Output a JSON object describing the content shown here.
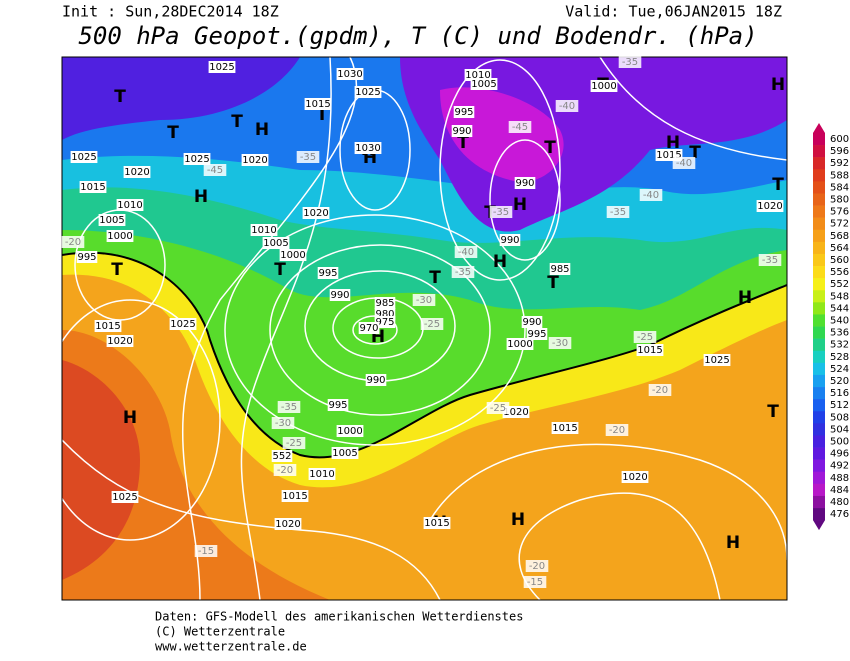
{
  "header": {
    "init": "Init : Sun,28DEC2014 18Z",
    "valid": "Valid: Tue,06JAN2015 18Z",
    "title": "500 hPa Geopot.(gpdm), T (C) und Bodendr. (hPa)"
  },
  "footer": {
    "source": "Daten: GFS-Modell des amerikanischen Wetterdienstes",
    "copyright": "(C) Wetterzentrale",
    "url": "www.wetterzentrale.de"
  },
  "colorbar": {
    "levels": [
      "600",
      "596",
      "592",
      "588",
      "584",
      "580",
      "576",
      "572",
      "568",
      "564",
      "560",
      "556",
      "552",
      "548",
      "544",
      "540",
      "536",
      "532",
      "528",
      "524",
      "520",
      "516",
      "512",
      "508",
      "504",
      "500",
      "496",
      "492",
      "488",
      "484",
      "480",
      "476"
    ],
    "colors": [
      "#c8005a",
      "#d01040",
      "#d82828",
      "#e03c1c",
      "#e45018",
      "#e86418",
      "#ee7818",
      "#f28c18",
      "#f6a018",
      "#f8b418",
      "#fac818",
      "#fcdc18",
      "#f6f018",
      "#c8f018",
      "#90e818",
      "#50e030",
      "#30d850",
      "#20d088",
      "#18d0c0",
      "#18c0e8",
      "#18a0f0",
      "#1880f0",
      "#1860f0",
      "#2040e8",
      "#3030e0",
      "#4820e0",
      "#6018e0",
      "#8018e0",
      "#a018d8",
      "#b818c8",
      "#8c10a0",
      "#600880"
    ]
  },
  "map": {
    "pressure_centers": [
      "T",
      "T",
      "T",
      "T",
      "H",
      "H",
      "H",
      "T",
      "T",
      "H",
      "H",
      "T",
      "H",
      "T",
      "T",
      "T",
      "T",
      "T",
      "H",
      "H",
      "H",
      "H",
      "T",
      "H",
      "H",
      "T",
      "T",
      "H",
      "H"
    ],
    "isobar_labels": [
      "1025",
      "1030",
      "1025",
      "1015",
      "1030",
      "1025",
      "1020",
      "1015",
      "1010",
      "1005",
      "1000",
      "995",
      "1020",
      "1010",
      "1005",
      "1000",
      "995",
      "990",
      "985",
      "980",
      "975",
      "970",
      "990",
      "995",
      "1000",
      "1005",
      "1010",
      "1015",
      "1020",
      "1025",
      "1015",
      "1020",
      "1025",
      "1010",
      "1005",
      "995",
      "990",
      "990",
      "990",
      "985",
      "990",
      "995",
      "1000",
      "1015",
      "1025",
      "1020",
      "1015",
      "1020",
      "1015",
      "1000",
      "1015",
      "1020",
      "1025",
      "1020",
      "552"
    ],
    "temperature_labels": [
      "-20",
      "-45",
      "-35",
      "-45",
      "-40",
      "-35",
      "-40",
      "-40",
      "-35",
      "-40",
      "-35",
      "-30",
      "-25",
      "-35",
      "-30",
      "-25",
      "-20",
      "-20",
      "-35",
      "-30",
      "-25",
      "-20",
      "-15",
      "-20",
      "-15",
      "-25",
      "-35"
    ]
  }
}
